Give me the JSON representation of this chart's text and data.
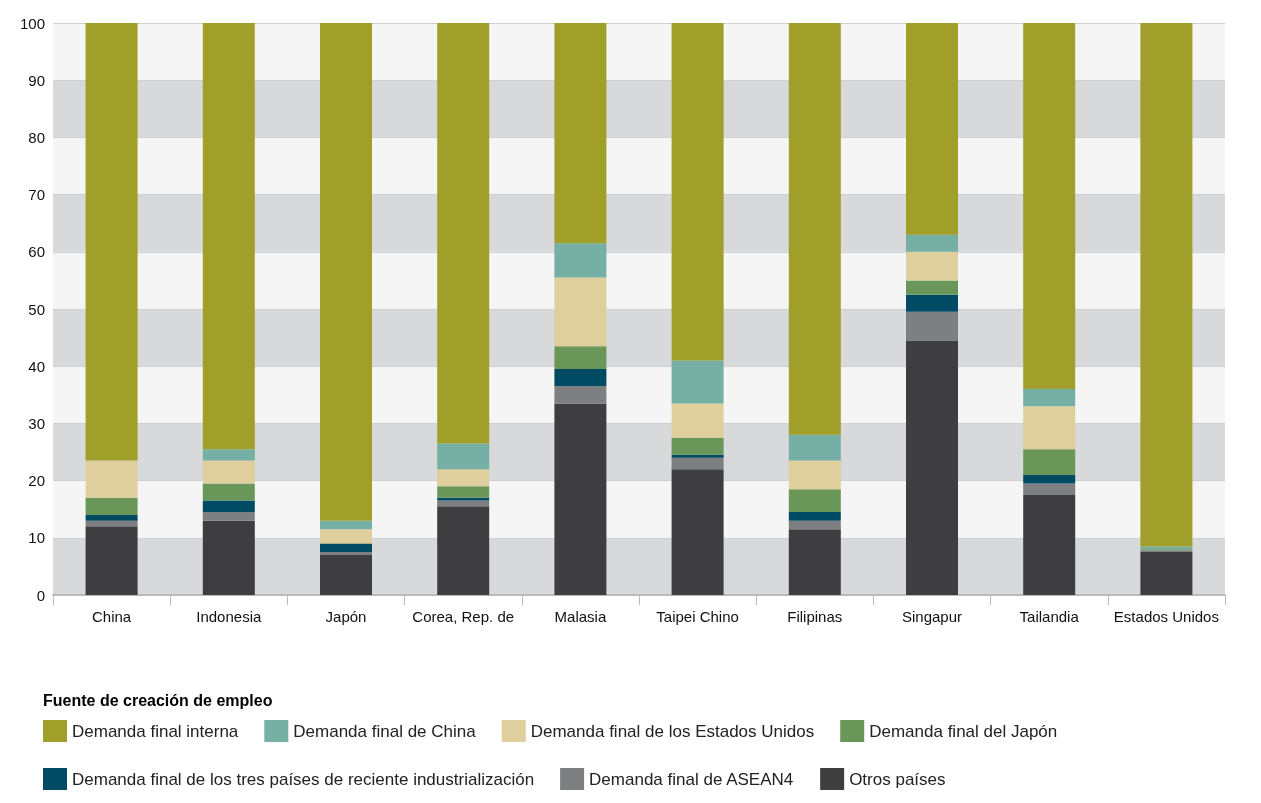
{
  "chart_data": {
    "type": "bar",
    "stacked": true,
    "legend_title": "Fuente de creación de empleo",
    "categories": [
      "China",
      "Indonesia",
      "Japón",
      "Corea, Rep. de",
      "Malasia",
      "Taipei Chino",
      "Filipinas",
      "Singapur",
      "Tailandia",
      "Estados Unidos"
    ],
    "series": [
      {
        "name": "Otros países",
        "color": "#3e3e40",
        "values": [
          12,
          13,
          7,
          15.5,
          33.5,
          22,
          11.5,
          44.5,
          17.5,
          7.5
        ]
      },
      {
        "name": "Demanda final de ASEAN4",
        "color": "#7e7f81",
        "values": [
          1,
          1.5,
          0.5,
          1,
          3,
          2,
          1.5,
          5,
          2,
          0.3
        ]
      },
      {
        "name": "Demanda final de los tres países de reciente industrialización",
        "color": "#004a63",
        "values": [
          1,
          2,
          1.5,
          0.5,
          3,
          0.5,
          1.5,
          3,
          1.5,
          0
        ]
      },
      {
        "name": "Demanda final del Japón",
        "color": "#6a9659",
        "values": [
          3,
          3,
          0,
          2,
          4,
          3,
          4,
          2.5,
          4.5,
          0.2
        ]
      },
      {
        "name": "Demanda final de los Estados Unidos",
        "color": "#dfcf9c",
        "values": [
          6.5,
          4,
          2.5,
          3,
          12,
          6,
          5,
          5,
          7.5,
          0
        ]
      },
      {
        "name": "Demanda final de China",
        "color": "#76b0a5",
        "values": [
          0,
          2,
          1.5,
          4.5,
          6,
          7.5,
          4.5,
          3,
          3,
          0.5
        ]
      },
      {
        "name": "Demanda final interna",
        "color": "#a09f2a",
        "values": [
          76.5,
          74.5,
          87,
          73.5,
          38.5,
          59,
          72,
          37,
          64,
          91.5
        ]
      }
    ],
    "ylim": [
      0,
      100
    ],
    "yticks": [
      0,
      10,
      20,
      30,
      40,
      50,
      60,
      70,
      80,
      90,
      100
    ],
    "grid": true,
    "legend": "bottom"
  }
}
